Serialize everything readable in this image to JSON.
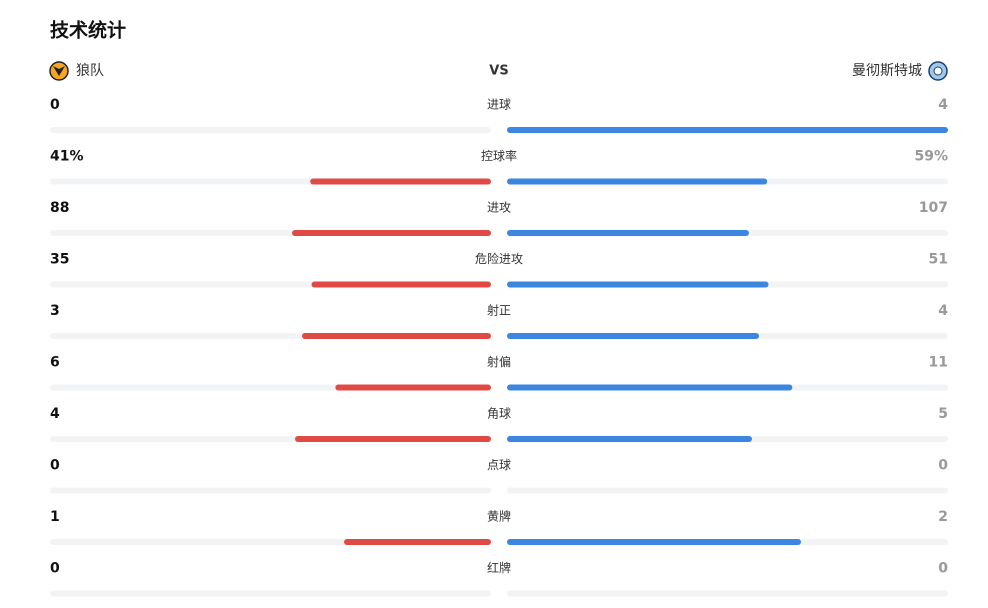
{
  "header": {
    "title": "技术统计",
    "home_team": "狼队",
    "vs": "VS",
    "away_team": "曼彻斯特城"
  },
  "stats": [
    {
      "label": "进球",
      "home": 0,
      "away": 4
    },
    {
      "label": "控球率",
      "home": 41,
      "away": 59,
      "home_label": "41%",
      "away_label": "59%"
    },
    {
      "label": "进攻",
      "home": 88,
      "away": 107
    },
    {
      "label": "危险进攻",
      "home": 35,
      "away": 51
    },
    {
      "label": "射正",
      "home": 3,
      "away": 4
    },
    {
      "label": "射偏",
      "home": 6,
      "away": 11
    },
    {
      "label": "角球",
      "home": 4,
      "away": 5
    },
    {
      "label": "点球",
      "home": 0,
      "away": 0
    },
    {
      "label": "黄牌",
      "home": 1,
      "away": 2
    },
    {
      "label": "红牌",
      "home": 0,
      "away": 0
    }
  ]
}
